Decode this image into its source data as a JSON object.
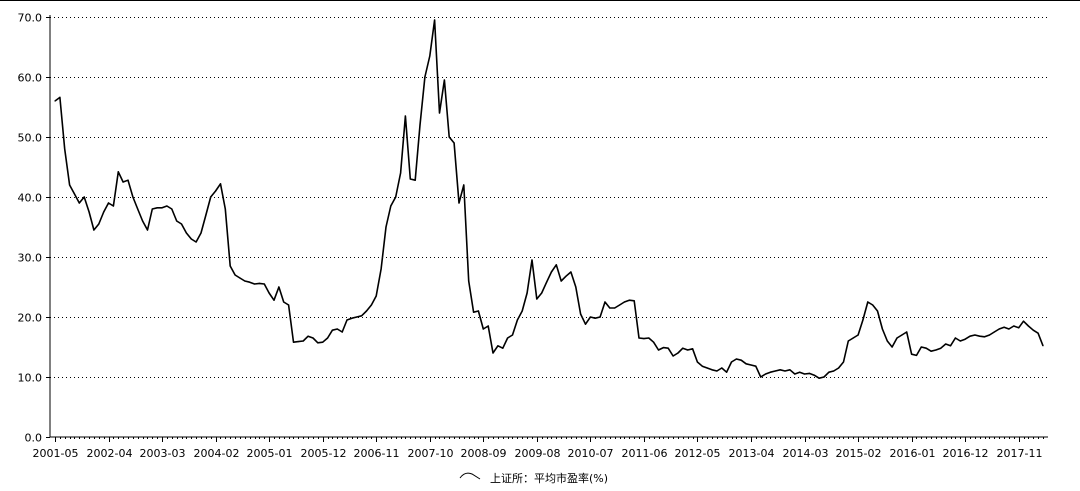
{
  "chart_data": {
    "type": "line",
    "title": "",
    "xlabel": "",
    "ylabel": "",
    "ylim": [
      0,
      70
    ],
    "y_ticks": [
      "0.0",
      "10.0",
      "20.0",
      "30.0",
      "40.0",
      "50.0",
      "60.0",
      "70.0"
    ],
    "x_ticks": [
      "2001-05",
      "2002-04",
      "2003-03",
      "2004-02",
      "2005-01",
      "2005-12",
      "2006-11",
      "2007-10",
      "2008-09",
      "2009-08",
      "2010-07",
      "2011-06",
      "2012-05",
      "2013-04",
      "2014-03",
      "2015-02",
      "2016-01",
      "2016-12",
      "2017-11"
    ],
    "grid": "horizontal dotted",
    "legend_position": "bottom",
    "series": [
      {
        "name": "上证所：平均市盈率(%)",
        "color": "#000000",
        "x": [
          "2001-05",
          "2001-06",
          "2001-07",
          "2001-08",
          "2001-09",
          "2001-10",
          "2001-11",
          "2001-12",
          "2002-01",
          "2002-02",
          "2002-03",
          "2002-04",
          "2002-05",
          "2002-06",
          "2002-07",
          "2002-08",
          "2002-09",
          "2002-10",
          "2002-11",
          "2002-12",
          "2003-01",
          "2003-02",
          "2003-03",
          "2003-04",
          "2003-05",
          "2003-06",
          "2003-07",
          "2003-08",
          "2003-09",
          "2003-10",
          "2003-11",
          "2003-12",
          "2004-01",
          "2004-02",
          "2004-03",
          "2004-04",
          "2004-05",
          "2004-06",
          "2004-07",
          "2004-08",
          "2004-09",
          "2004-10",
          "2004-11",
          "2004-12",
          "2005-01",
          "2005-02",
          "2005-03",
          "2005-04",
          "2005-05",
          "2005-06",
          "2005-07",
          "2005-08",
          "2005-09",
          "2005-10",
          "2005-11",
          "2005-12",
          "2006-01",
          "2006-02",
          "2006-03",
          "2006-04",
          "2006-05",
          "2006-06",
          "2006-07",
          "2006-08",
          "2006-09",
          "2006-10",
          "2006-11",
          "2006-12",
          "2007-01",
          "2007-02",
          "2007-03",
          "2007-04",
          "2007-05",
          "2007-06",
          "2007-07",
          "2007-08",
          "2007-09",
          "2007-10",
          "2007-11",
          "2007-12",
          "2008-01",
          "2008-02",
          "2008-03",
          "2008-04",
          "2008-05",
          "2008-06",
          "2008-07",
          "2008-08",
          "2008-09",
          "2008-10",
          "2008-11",
          "2008-12",
          "2009-01",
          "2009-02",
          "2009-03",
          "2009-04",
          "2009-05",
          "2009-06",
          "2009-07",
          "2009-08",
          "2009-09",
          "2009-10",
          "2009-11",
          "2009-12",
          "2010-01",
          "2010-02",
          "2010-03",
          "2010-04",
          "2010-05",
          "2010-06",
          "2010-07",
          "2010-08",
          "2010-09",
          "2010-10",
          "2010-11",
          "2010-12",
          "2011-01",
          "2011-02",
          "2011-03",
          "2011-04",
          "2011-05",
          "2011-06",
          "2011-07",
          "2011-08",
          "2011-09",
          "2011-10",
          "2011-11",
          "2011-12",
          "2012-01",
          "2012-02",
          "2012-03",
          "2012-04",
          "2012-05",
          "2012-06",
          "2012-07",
          "2012-08",
          "2012-09",
          "2012-10",
          "2012-11",
          "2012-12",
          "2013-01",
          "2013-02",
          "2013-03",
          "2013-04",
          "2013-05",
          "2013-06",
          "2013-07",
          "2013-08",
          "2013-09",
          "2013-10",
          "2013-11",
          "2013-12",
          "2014-01",
          "2014-02",
          "2014-03",
          "2014-04",
          "2014-05",
          "2014-06",
          "2014-07",
          "2014-08",
          "2014-09",
          "2014-10",
          "2014-11",
          "2014-12",
          "2015-01",
          "2015-02",
          "2015-03",
          "2015-04",
          "2015-05",
          "2015-06",
          "2015-07",
          "2015-08",
          "2015-09",
          "2015-10",
          "2015-11",
          "2015-12",
          "2016-01",
          "2016-02",
          "2016-03",
          "2016-04",
          "2016-05",
          "2016-06",
          "2016-07",
          "2016-08",
          "2016-09",
          "2016-10",
          "2016-11",
          "2016-12",
          "2017-01",
          "2017-02",
          "2017-03",
          "2017-04",
          "2017-05",
          "2017-06",
          "2017-07",
          "2017-08",
          "2017-09",
          "2017-10",
          "2017-11",
          "2017-12",
          "2018-01",
          "2018-02",
          "2018-03",
          "2018-04"
        ],
        "values": [
          56.0,
          56.6,
          48.0,
          42.0,
          40.5,
          39.0,
          40.0,
          37.5,
          34.5,
          35.5,
          37.5,
          39.0,
          38.5,
          44.2,
          42.5,
          42.8,
          40.0,
          38.0,
          36.0,
          34.5,
          38.0,
          38.2,
          38.2,
          38.5,
          38.0,
          36.0,
          35.5,
          34.0,
          33.0,
          32.5,
          34.0,
          37.0,
          40.0,
          41.0,
          42.2,
          38.0,
          28.5,
          27.0,
          26.5,
          26.0,
          25.8,
          25.5,
          25.6,
          25.5,
          24.0,
          22.8,
          25.0,
          22.5,
          22.0,
          15.8,
          15.9,
          16.0,
          16.8,
          16.5,
          15.7,
          15.8,
          16.5,
          17.8,
          18.0,
          17.5,
          19.5,
          19.8,
          20.0,
          20.2,
          21.0,
          22.0,
          23.5,
          28.0,
          35.0,
          38.5,
          40.0,
          44.0,
          53.5,
          43.0,
          42.8,
          52.0,
          60.0,
          63.5,
          69.5,
          54.0,
          59.5,
          50.0,
          49.0,
          39.0,
          42.0,
          26.0,
          20.8,
          21.0,
          18.0,
          18.5,
          14.0,
          15.2,
          14.8,
          16.5,
          17.0,
          19.5,
          21.0,
          24.0,
          29.5,
          23.0,
          24.0,
          25.8,
          27.5,
          28.7,
          26.0,
          26.8,
          27.5,
          25.0,
          20.5,
          18.8,
          20.0,
          19.8,
          20.0,
          22.5,
          21.5,
          21.5,
          22.0,
          22.5,
          22.8,
          22.7,
          16.5,
          16.4,
          16.5,
          15.8,
          14.5,
          14.9,
          14.8,
          13.5,
          14.0,
          14.8,
          14.5,
          14.7,
          12.5,
          11.8,
          11.5,
          11.2,
          11.0,
          11.5,
          10.8,
          12.5,
          13.0,
          12.8,
          12.2,
          12.0,
          11.8,
          10.0,
          10.5,
          10.8,
          11.0,
          11.2,
          11.0,
          11.2,
          10.5,
          10.8,
          10.5,
          10.6,
          10.3,
          9.8,
          10.0,
          10.8,
          11.0,
          11.5,
          12.5,
          16.0,
          16.5,
          17.0,
          19.5,
          22.5,
          22.0,
          21.0,
          18.0,
          16.0,
          15.0,
          16.5,
          17.0,
          17.5,
          13.8,
          13.6,
          15.0,
          14.8,
          14.3,
          14.5,
          14.8,
          15.5,
          15.2,
          16.5,
          16.0,
          16.3,
          16.8,
          17.0,
          16.8,
          16.7,
          17.0,
          17.5,
          18.0,
          18.3,
          18.0,
          18.5,
          18.2,
          19.3,
          18.5,
          17.8,
          17.3,
          15.2
        ]
      }
    ]
  }
}
